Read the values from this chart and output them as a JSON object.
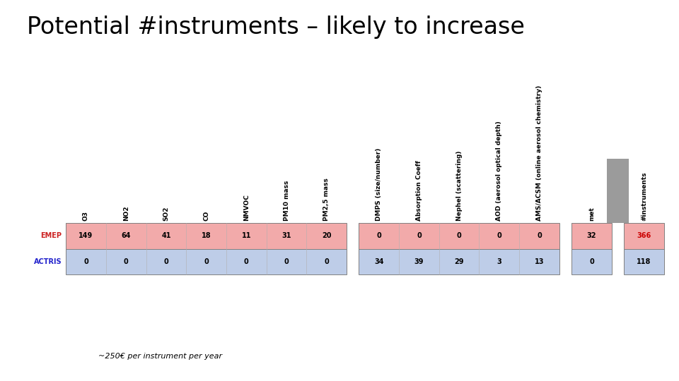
{
  "title": "Potential #instruments – likely to increase",
  "annotation": "~250€ per instrument per year",
  "columns": [
    "O3",
    "NO2",
    "SO2",
    "CO",
    "NMVOC",
    "PM10 mass",
    "PM2,5 mass",
    "DMPS (size/number)",
    "Absorption Coeff",
    "Nephel (scattering)",
    "AOD (aerosol optical depth)",
    "AMS/ACSM (online aerosol chemistry)",
    "met",
    "#instruments"
  ],
  "emep_values": [
    149,
    64,
    41,
    18,
    11,
    31,
    20,
    0,
    0,
    0,
    0,
    0,
    32,
    366
  ],
  "actris_values": [
    0,
    0,
    0,
    0,
    0,
    0,
    0,
    34,
    39,
    29,
    3,
    13,
    0,
    118
  ],
  "group_breaks": [
    7,
    12,
    13
  ],
  "emep_color": "#F2AAAA",
  "actris_color": "#BECDE8",
  "emep_row_label_color": "#CC2222",
  "actris_row_label_color": "#2222CC",
  "instruments_emep_text_color": "#CC0000",
  "bar_color": "#9B9B9B",
  "background_color": "#FFFFFF",
  "title_fontsize": 24,
  "annotation_fontsize": 8,
  "cell_fontsize": 7,
  "header_fontsize": 6.5,
  "row_label_fontsize": 7
}
